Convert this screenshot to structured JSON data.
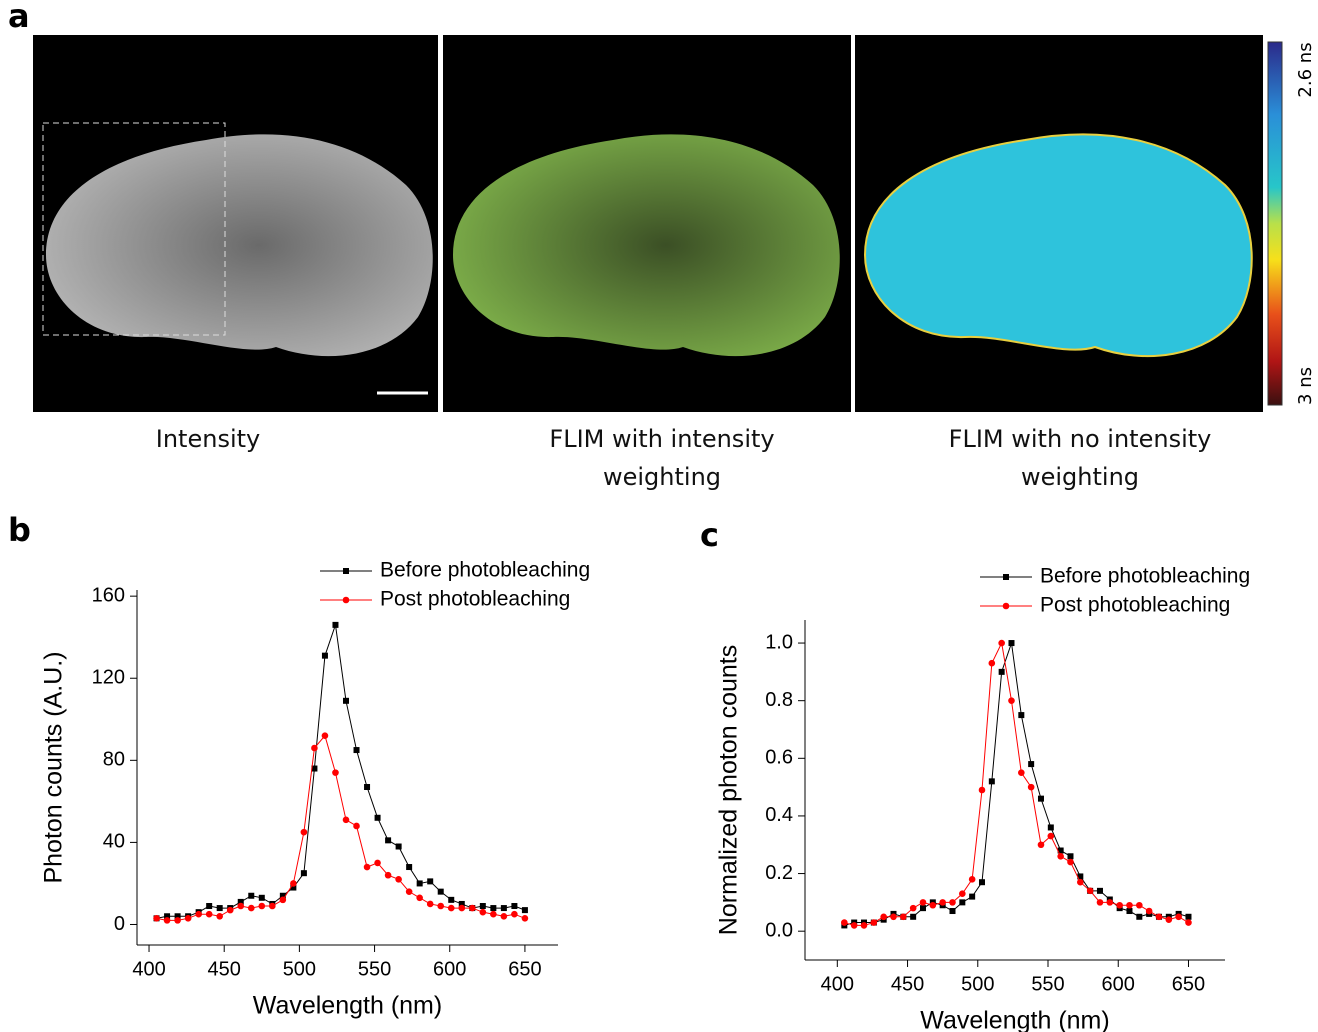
{
  "figure": {
    "panel_labels": [
      "a",
      "b",
      "c"
    ],
    "image_captions": [
      "Intensity",
      "FLIM with intensity weighting",
      "FLIM with no intensity weighting"
    ],
    "colorbar": {
      "top_label": "2.6 ns",
      "bottom_label": "3 ns"
    }
  },
  "chart_data": [
    {
      "type": "line",
      "x_label": "Wavelength (nm)",
      "y_label": "Photon counts (A.U.)",
      "x": [
        405,
        412,
        419,
        426,
        433,
        440,
        447,
        454,
        461,
        468,
        475,
        482,
        489,
        496,
        503,
        510,
        517,
        524,
        531,
        538,
        545,
        552,
        559,
        566,
        573,
        580,
        587,
        594,
        601,
        608,
        615,
        622,
        629,
        636,
        643,
        650
      ],
      "series": [
        {
          "name": "Before photobleaching",
          "color": "#000000",
          "marker": "square",
          "values": [
            3,
            4,
            4,
            4,
            6,
            9,
            8,
            8,
            11,
            14,
            13,
            10,
            14,
            18,
            25,
            76,
            131,
            146,
            109,
            85,
            67,
            52,
            41,
            38,
            28,
            20,
            21,
            16,
            12,
            10,
            8,
            9,
            8,
            8,
            9,
            7
          ]
        },
        {
          "name": "Post photobleaching",
          "color": "#ff0000",
          "marker": "circle",
          "values": [
            3,
            2,
            2,
            3,
            5,
            5,
            4,
            7,
            9,
            8,
            9,
            9,
            12,
            20,
            45,
            86,
            92,
            74,
            51,
            48,
            28,
            30,
            24,
            22,
            16,
            13,
            10,
            9,
            8,
            8,
            8,
            6,
            5,
            4,
            5,
            3
          ]
        }
      ],
      "xlim": [
        392,
        672
      ],
      "xticks": [
        400,
        450,
        500,
        550,
        600,
        650
      ],
      "ylim": [
        -10,
        163
      ],
      "yticks": [
        0,
        40,
        80,
        120,
        160
      ],
      "legend": "top"
    },
    {
      "type": "line",
      "x_label": "Wavelength (nm)",
      "y_label": "Normalized photon counts",
      "x": [
        405,
        412,
        419,
        426,
        433,
        440,
        447,
        454,
        461,
        468,
        475,
        482,
        489,
        496,
        503,
        510,
        517,
        524,
        531,
        538,
        545,
        552,
        559,
        566,
        573,
        580,
        587,
        594,
        601,
        608,
        615,
        622,
        629,
        636,
        643,
        650
      ],
      "series": [
        {
          "name": "Before photobleaching",
          "color": "#000000",
          "marker": "square",
          "values": [
            0.02,
            0.03,
            0.03,
            0.03,
            0.04,
            0.06,
            0.05,
            0.05,
            0.08,
            0.1,
            0.09,
            0.07,
            0.1,
            0.12,
            0.17,
            0.52,
            0.9,
            1.0,
            0.75,
            0.58,
            0.46,
            0.36,
            0.28,
            0.26,
            0.19,
            0.14,
            0.14,
            0.11,
            0.08,
            0.07,
            0.05,
            0.06,
            0.05,
            0.05,
            0.06,
            0.05
          ]
        },
        {
          "name": "Post photobleaching",
          "color": "#ff0000",
          "marker": "circle",
          "values": [
            0.03,
            0.02,
            0.02,
            0.03,
            0.05,
            0.05,
            0.05,
            0.08,
            0.1,
            0.09,
            0.1,
            0.1,
            0.13,
            0.18,
            0.49,
            0.93,
            1.0,
            0.8,
            0.55,
            0.5,
            0.3,
            0.33,
            0.26,
            0.24,
            0.17,
            0.14,
            0.1,
            0.1,
            0.09,
            0.09,
            0.09,
            0.07,
            0.05,
            0.04,
            0.05,
            0.03
          ]
        }
      ],
      "xlim": [
        377,
        676
      ],
      "xticks": [
        400,
        450,
        500,
        550,
        600,
        650
      ],
      "ylim": [
        -0.1,
        1.08
      ],
      "yticks": [
        {
          "value": 0,
          "label": "0.0"
        },
        0.2,
        0.4,
        0.6,
        0.8,
        {
          "value": 1,
          "label": "1.0"
        }
      ],
      "legend": "top"
    }
  ]
}
